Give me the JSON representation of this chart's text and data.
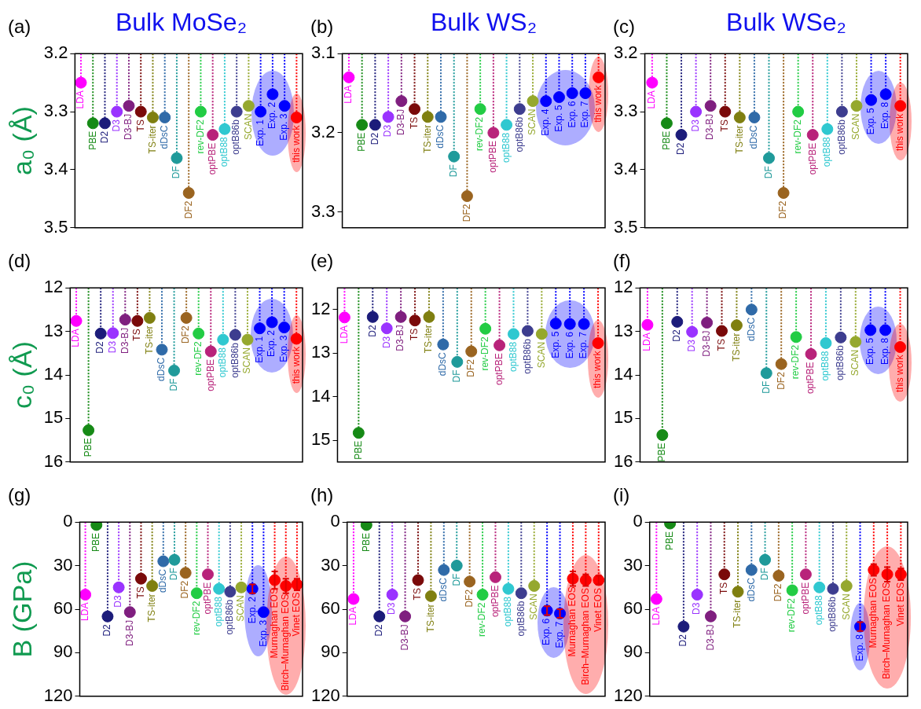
{
  "chart_data": [
    {
      "type": "lollipop",
      "title": "Bulk MoSe₂",
      "ylabel": "a₀ (Å)",
      "annotations": [
        "(a)"
      ],
      "marker": "circle",
      "line_style": "dotted",
      "tick_labels": "y",
      "categories": [
        "LDA",
        "PBE",
        "D2",
        "D3",
        "D3-BJ",
        "TS",
        "TS-iter",
        "dDsC",
        "DF",
        "DF2",
        "rev-DF2",
        "optPBE",
        "optB88",
        "optB86b",
        "SCAN",
        "Exp. 1",
        "Exp. 2",
        "Exp. 3",
        "this work"
      ],
      "values": [
        3.25,
        3.32,
        3.32,
        3.3,
        3.29,
        3.3,
        3.31,
        3.31,
        3.38,
        3.44,
        3.3,
        3.34,
        3.33,
        3.3,
        3.29,
        3.3,
        3.27,
        3.29,
        3.31
      ],
      "colors": [
        "#ff00ff",
        "#168a16",
        "#1c1c7a",
        "#9a33ff",
        "#7f1f7f",
        "#7a0a0a",
        "#7f7f10",
        "#2f6aa8",
        "#1f9a9a",
        "#9a6420",
        "#22cc44",
        "#b8237a",
        "#2fc8d0",
        "#3d3d8f",
        "#95a82e",
        "#0000ff",
        "#0000ff",
        "#0000ff",
        "#ff0000"
      ],
      "ylim": [
        3.5,
        3.2
      ],
      "yticks": [
        3.2,
        3.3,
        3.4,
        3.5
      ]
    },
    {
      "type": "lollipop",
      "title": "Bulk WS₂",
      "annotations": [
        "(b)"
      ],
      "marker": "circle",
      "line_style": "dotted",
      "tick_labels": "y",
      "categories": [
        "LDA",
        "PBE",
        "D2",
        "D3",
        "D3-BJ",
        "TS",
        "TS-iter",
        "dDsC",
        "DF",
        "DF2",
        "rev-DF2",
        "optPBE",
        "optB88",
        "optB86b",
        "SCAN",
        "Exp. 4",
        "Exp. 5",
        "Exp. 6",
        "Exp. 7",
        "this work"
      ],
      "values": [
        3.13,
        3.19,
        3.19,
        3.18,
        3.16,
        3.17,
        3.18,
        3.18,
        3.23,
        3.28,
        3.17,
        3.2,
        3.19,
        3.17,
        3.16,
        3.16,
        3.155,
        3.15,
        3.15,
        3.13
      ],
      "colors": [
        "#ff00ff",
        "#168a16",
        "#1c1c7a",
        "#9a33ff",
        "#7f1f7f",
        "#7a0a0a",
        "#7f7f10",
        "#2f6aa8",
        "#1f9a9a",
        "#9a6420",
        "#22cc44",
        "#b8237a",
        "#2fc8d0",
        "#3d3d8f",
        "#95a82e",
        "#0000ff",
        "#0000ff",
        "#0000ff",
        "#0000ff",
        "#ff0000"
      ],
      "ylim": [
        3.32,
        3.1
      ],
      "yticks": [
        3.1,
        3.2,
        3.3
      ]
    },
    {
      "type": "lollipop",
      "title": "Bulk WSe₂",
      "annotations": [
        "(c)"
      ],
      "marker": "circle",
      "line_style": "dotted",
      "tick_labels": "y",
      "categories": [
        "LDA",
        "PBE",
        "D2",
        "D3",
        "D3-BJ",
        "TS",
        "TS-iter",
        "dDsC",
        "DF",
        "DF2",
        "rev-DF2",
        "optPBE",
        "optB88",
        "optB86b",
        "SCAN",
        "Exp. 5",
        "Exp. 8",
        "this work"
      ],
      "values": [
        3.25,
        3.32,
        3.34,
        3.3,
        3.29,
        3.3,
        3.31,
        3.31,
        3.38,
        3.44,
        3.3,
        3.34,
        3.33,
        3.3,
        3.29,
        3.28,
        3.27,
        3.29
      ],
      "colors": [
        "#ff00ff",
        "#168a16",
        "#1c1c7a",
        "#9a33ff",
        "#7f1f7f",
        "#7a0a0a",
        "#7f7f10",
        "#2f6aa8",
        "#1f9a9a",
        "#9a6420",
        "#22cc44",
        "#b8237a",
        "#2fc8d0",
        "#3d3d8f",
        "#95a82e",
        "#0000ff",
        "#0000ff",
        "#ff0000"
      ],
      "ylim": [
        3.5,
        3.2
      ],
      "yticks": [
        3.2,
        3.3,
        3.4,
        3.5
      ]
    },
    {
      "type": "lollipop",
      "ylabel": "c₀ (Å)",
      "annotations": [
        "(d)"
      ],
      "marker": "circle",
      "line_style": "dotted",
      "tick_labels": "y",
      "categories": [
        "LDA",
        "PBE",
        "D2",
        "D3",
        "D3-BJ",
        "TS",
        "TS-iter",
        "dDsC",
        "DF",
        "DF2",
        "rev-DF2",
        "optPBE",
        "optB88",
        "optB86b",
        "SCAN",
        "Exp. 1",
        "Exp. 2",
        "Exp. 3",
        "this work"
      ],
      "values": [
        12.76,
        15.27,
        13.05,
        13.04,
        12.73,
        12.76,
        12.69,
        13.42,
        13.9,
        12.69,
        13.05,
        13.46,
        13.19,
        13.08,
        13.19,
        12.93,
        12.79,
        12.91,
        13.17
      ],
      "colors": [
        "#ff00ff",
        "#168a16",
        "#1c1c7a",
        "#9a33ff",
        "#7f1f7f",
        "#7a0a0a",
        "#7f7f10",
        "#2f6aa8",
        "#1f9a9a",
        "#9a6420",
        "#22cc44",
        "#b8237a",
        "#2fc8d0",
        "#3d3d8f",
        "#95a82e",
        "#0000ff",
        "#0000ff",
        "#0000ff",
        "#ff0000"
      ],
      "ylim": [
        16,
        12
      ],
      "yticks": [
        12,
        13,
        14,
        15,
        16
      ]
    },
    {
      "type": "lollipop",
      "annotations": [
        "(e)"
      ],
      "marker": "circle",
      "line_style": "dotted",
      "tick_labels": "y",
      "categories": [
        "LDA",
        "PBE",
        "D2",
        "D3",
        "D3-BJ",
        "TS",
        "TS-iter",
        "dDsC",
        "DF",
        "DF2",
        "rev-DF2",
        "optPBE",
        "optB88",
        "optB86b",
        "SCAN",
        "Exp. 5",
        "Exp. 6",
        "Exp. 7",
        "this work"
      ],
      "values": [
        12.18,
        14.83,
        12.17,
        12.43,
        12.17,
        12.25,
        12.17,
        12.8,
        13.2,
        12.96,
        12.44,
        12.82,
        12.56,
        12.49,
        12.56,
        12.32,
        12.33,
        12.33,
        12.77
      ],
      "colors": [
        "#ff00ff",
        "#168a16",
        "#1c1c7a",
        "#9a33ff",
        "#7f1f7f",
        "#7a0a0a",
        "#7f7f10",
        "#2f6aa8",
        "#1f9a9a",
        "#9a6420",
        "#22cc44",
        "#b8237a",
        "#2fc8d0",
        "#3d3d8f",
        "#95a82e",
        "#0000ff",
        "#0000ff",
        "#0000ff",
        "#ff0000"
      ],
      "ylim": [
        15.5,
        11.5
      ],
      "yticks": [
        12,
        13,
        14,
        15
      ]
    },
    {
      "type": "lollipop",
      "annotations": [
        "(f)"
      ],
      "marker": "circle",
      "line_style": "dotted",
      "tick_labels": "y",
      "categories": [
        "LDA",
        "PBE",
        "D2",
        "D3",
        "D3-BJ",
        "TS",
        "TS-iter",
        "dDsC",
        "DF",
        "DF2",
        "rev-DF2",
        "optPBE",
        "optB88",
        "optB86b",
        "SCAN",
        "Exp. 5",
        "Exp. 8",
        "this work"
      ],
      "values": [
        12.85,
        15.38,
        12.78,
        13.01,
        12.8,
        12.99,
        12.86,
        12.5,
        13.96,
        13.75,
        13.13,
        13.52,
        13.27,
        13.14,
        13.24,
        12.97,
        12.97,
        13.36
      ],
      "colors": [
        "#ff00ff",
        "#168a16",
        "#1c1c7a",
        "#9a33ff",
        "#7f1f7f",
        "#7a0a0a",
        "#7f7f10",
        "#2f6aa8",
        "#1f9a9a",
        "#9a6420",
        "#22cc44",
        "#b8237a",
        "#2fc8d0",
        "#3d3d8f",
        "#95a82e",
        "#0000ff",
        "#0000ff",
        "#ff0000"
      ],
      "ylim": [
        16,
        12
      ],
      "yticks": [
        12,
        13,
        14,
        15,
        16
      ]
    },
    {
      "type": "lollipop",
      "ylabel": "B (GPa)",
      "annotations": [
        "(g)"
      ],
      "marker": "circle",
      "line_style": "dotted",
      "tick_labels": "y",
      "categories": [
        "LDA",
        "PBE",
        "D2",
        "D3",
        "D3-BJ",
        "TS",
        "TS-iter",
        "dDsC",
        "DF",
        "DF2",
        "rev-DF2",
        "optPBE",
        "optB88",
        "optB86b",
        "SCAN",
        "Exp. 2",
        "Exp. 3",
        "Murnaghan EOS",
        "Birch–Murnaghan EOS",
        "Vinet EOS"
      ],
      "values": [
        50,
        2,
        65,
        45,
        62,
        39,
        44,
        27,
        26,
        35,
        49,
        36,
        46,
        48,
        45,
        46,
        62,
        40,
        44,
        43
      ],
      "errors": [
        null,
        null,
        null,
        null,
        null,
        null,
        null,
        null,
        null,
        null,
        null,
        null,
        null,
        null,
        null,
        3,
        null,
        6,
        5,
        4
      ],
      "colors": [
        "#ff00ff",
        "#168a16",
        "#1c1c7a",
        "#9a33ff",
        "#7f1f7f",
        "#7a0a0a",
        "#7f7f10",
        "#2f6aa8",
        "#1f9a9a",
        "#9a6420",
        "#22cc44",
        "#b8237a",
        "#2fc8d0",
        "#3d3d8f",
        "#95a82e",
        "#0000ff",
        "#0000ff",
        "#ff0000",
        "#ff0000",
        "#ff0000"
      ],
      "ylim": [
        120,
        0
      ],
      "yticks": [
        0,
        30,
        60,
        90,
        120
      ]
    },
    {
      "type": "lollipop",
      "annotations": [
        "(h)"
      ],
      "marker": "circle",
      "line_style": "dotted",
      "tick_labels": "y",
      "categories": [
        "LDA",
        "PBE",
        "D2",
        "D3",
        "D3-BJ",
        "TS",
        "TS-iter",
        "dDsC",
        "DF",
        "DF2",
        "rev-DF2",
        "optPBE",
        "optB88",
        "optB86b",
        "SCAN",
        "Exp. 6",
        "Exp. 7",
        "Murnaghan EOS",
        "Birch–Murnaghan EOS",
        "Vinet EOS"
      ],
      "values": [
        53,
        2,
        65,
        50,
        65,
        40,
        51,
        33,
        30,
        41,
        50,
        38,
        46,
        49,
        44,
        61,
        63,
        39,
        40,
        40
      ],
      "errors": [
        null,
        null,
        null,
        null,
        null,
        null,
        null,
        null,
        null,
        null,
        null,
        null,
        null,
        null,
        null,
        3,
        3,
        5,
        4,
        3
      ],
      "colors": [
        "#ff00ff",
        "#168a16",
        "#1c1c7a",
        "#9a33ff",
        "#7f1f7f",
        "#7a0a0a",
        "#7f7f10",
        "#2f6aa8",
        "#1f9a9a",
        "#9a6420",
        "#22cc44",
        "#b8237a",
        "#2fc8d0",
        "#3d3d8f",
        "#95a82e",
        "#0000ff",
        "#0000ff",
        "#ff0000",
        "#ff0000",
        "#ff0000"
      ],
      "ylim": [
        120,
        0
      ],
      "yticks": [
        0,
        30,
        60,
        90,
        120
      ]
    },
    {
      "type": "lollipop",
      "annotations": [
        "(i)"
      ],
      "marker": "circle",
      "line_style": "dotted",
      "tick_labels": "y",
      "categories": [
        "LDA",
        "PBE",
        "D2",
        "D3",
        "D3-BJ",
        "TS",
        "TS-iter",
        "dDsC",
        "DF",
        "DF2",
        "rev-DF2",
        "optPBE",
        "optB88",
        "optB86b",
        "SCAN",
        "Exp. 8",
        "Murnaghan EOS",
        "Birch–Murnaghan EOS",
        "Vinet EOS"
      ],
      "values": [
        53,
        1,
        72,
        50,
        65,
        36,
        48,
        33,
        26,
        37,
        47,
        36,
        45,
        46,
        44,
        72,
        33,
        36,
        36
      ],
      "errors": [
        null,
        null,
        null,
        null,
        null,
        null,
        null,
        null,
        null,
        null,
        null,
        null,
        null,
        null,
        null,
        3,
        4,
        5,
        4
      ],
      "colors": [
        "#ff00ff",
        "#168a16",
        "#1c1c7a",
        "#9a33ff",
        "#7f1f7f",
        "#7a0a0a",
        "#7f7f10",
        "#2f6aa8",
        "#1f9a9a",
        "#9a6420",
        "#22cc44",
        "#b8237a",
        "#2fc8d0",
        "#3d3d8f",
        "#95a82e",
        "#0000ff",
        "#ff0000",
        "#ff0000",
        "#ff0000"
      ],
      "ylim": [
        120,
        0
      ],
      "yticks": [
        0,
        30,
        60,
        90,
        120
      ]
    }
  ]
}
